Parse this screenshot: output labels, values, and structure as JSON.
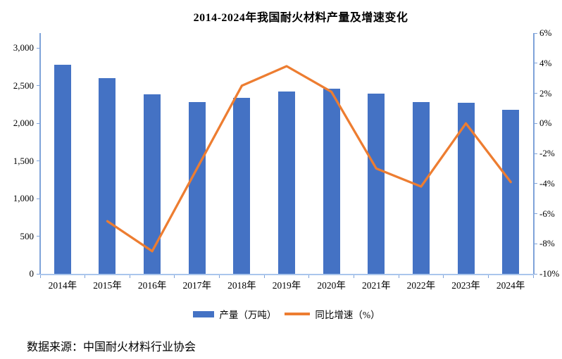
{
  "header": {
    "title": "2014-2024年我国耐火材料产量及增速变化"
  },
  "footer": {
    "source": "数据来源：中国耐火材料行业协会"
  },
  "legend": {
    "position": "bottom",
    "items": [
      {
        "label": "产量（万吨）",
        "marker": "bar-swatch",
        "color": "#4472c4"
      },
      {
        "label": "同比增速（%）",
        "marker": "line-swatch",
        "color": "#ed7d31"
      }
    ]
  },
  "chart_data": {
    "type": "bar+line combo",
    "title": "2014-2024年我国耐火材料产量及增速变化",
    "categories": [
      "2014年",
      "2015年",
      "2016年",
      "2017年",
      "2018年",
      "2019年",
      "2020年",
      "2021年",
      "2022年",
      "2023年",
      "2024年"
    ],
    "series": [
      {
        "name": "产量（万吨）",
        "type": "bar",
        "axis": "left",
        "color": "#4472c4",
        "values": [
          2780,
          2600,
          2385,
          2285,
          2335,
          2420,
          2465,
          2395,
          2285,
          2275,
          2180
        ]
      },
      {
        "name": "同比增速（%）",
        "type": "line",
        "axis": "right",
        "color": "#ed7d31",
        "values": [
          null,
          -6.5,
          -8.5,
          -3.0,
          2.5,
          3.8,
          2.1,
          -3.0,
          -4.2,
          0.0,
          -3.9
        ]
      }
    ],
    "left_axis": {
      "min": 0,
      "max": 3200,
      "tick_step": 500,
      "tick_values": [
        0,
        500,
        1000,
        1500,
        2000,
        2500,
        3000
      ],
      "tick_labels": [
        "0",
        "500",
        "1,000",
        "1,500",
        "2,000",
        "2,500",
        "3,000"
      ]
    },
    "right_axis": {
      "min": -10,
      "max": 6,
      "tick_step": 2,
      "tick_values": [
        6,
        4,
        2,
        0,
        -2,
        -4,
        -6,
        -8,
        -10
      ],
      "tick_labels": [
        "6%",
        "4%",
        "2%",
        "0%",
        "-2%",
        "-4%",
        "-6%",
        "-8%",
        "-10%"
      ]
    },
    "grid": false,
    "legend_position": "bottom",
    "axis_color": "#aac6ec",
    "tick_color": "#7fa3d9"
  }
}
